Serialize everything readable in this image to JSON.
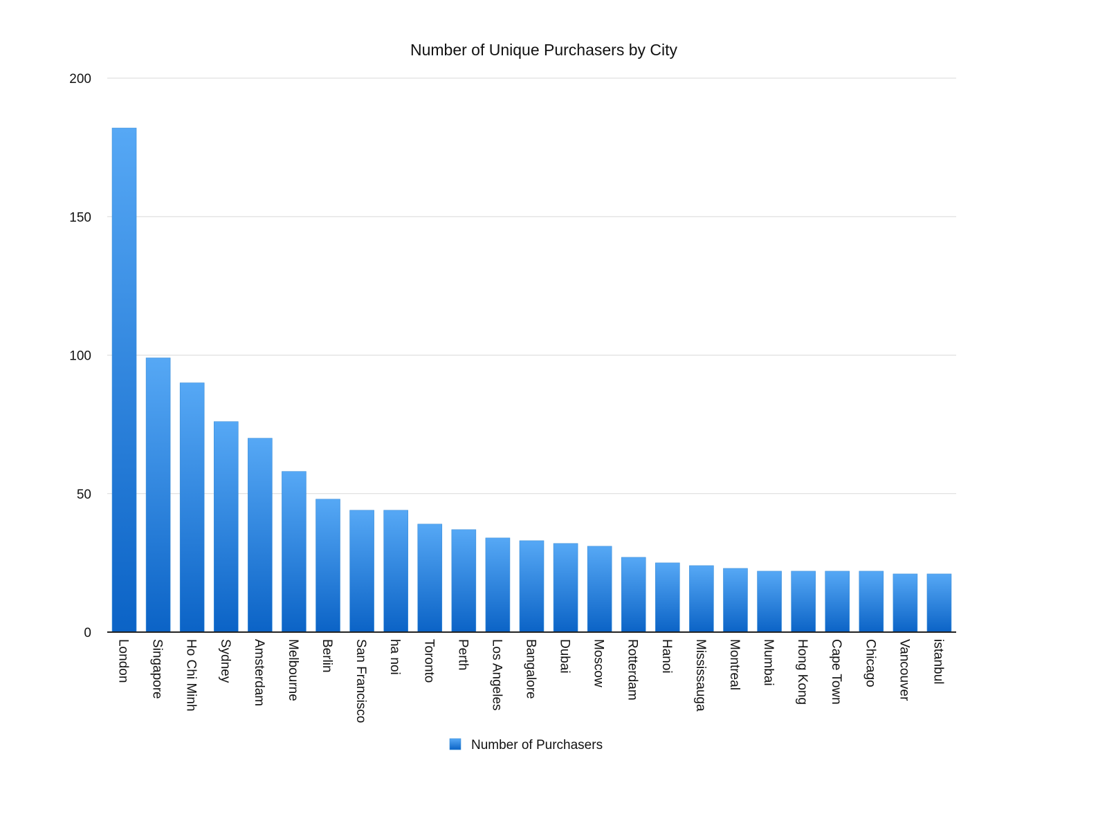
{
  "chart_data": {
    "type": "bar",
    "title": "Number of Unique Purchasers by City",
    "xlabel": "",
    "ylabel": "",
    "ylim": [
      0,
      200
    ],
    "yticks": [
      0,
      50,
      100,
      150,
      200
    ],
    "grid": true,
    "legend_position": "bottom-center",
    "categories": [
      "London",
      "Singapore",
      "Ho Chi Minh",
      "Sydney",
      "Amsterdam",
      "Melbourne",
      "Berlin",
      "San Francisco",
      "ha noi",
      "Toronto",
      "Perth",
      "Los Angeles",
      "Bangalore",
      "Dubai",
      "Moscow",
      "Rotterdam",
      "Hanoi",
      "Mississauga",
      "Montreal",
      "Mumbai",
      "Hong Kong",
      "Cape Town",
      "Chicago",
      "Vancouver",
      "istanbul"
    ],
    "series": [
      {
        "name": "Number of Purchasers",
        "color": "#2a86e0",
        "values": [
          182,
          99,
          90,
          76,
          70,
          58,
          48,
          44,
          44,
          39,
          37,
          34,
          33,
          32,
          31,
          27,
          25,
          24,
          23,
          22,
          22,
          22,
          22,
          21,
          21
        ]
      }
    ]
  }
}
